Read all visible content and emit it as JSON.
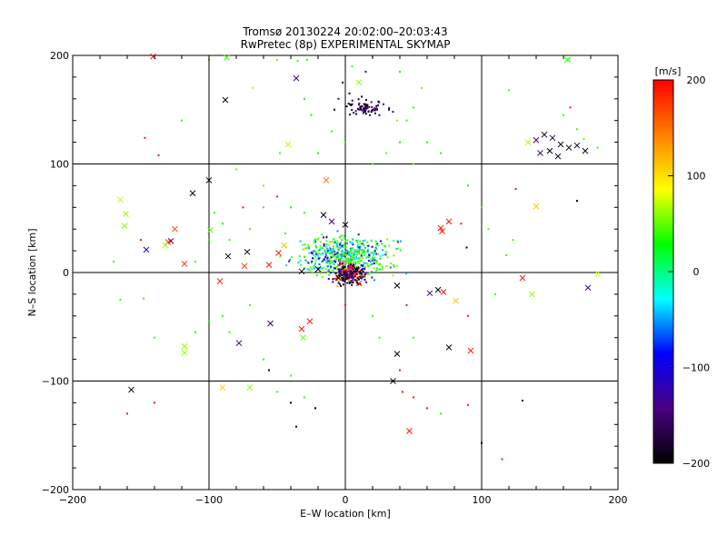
{
  "chart_data": {
    "type": "scatter",
    "title": "Tromsø 20130224 20:02:00–20:03:43",
    "subtitle": "RwPretec (8p) EXPERIMENTAL SKYMAP",
    "xlabel": "E–W location [km]",
    "ylabel": "N–S location [km]",
    "xlim": [
      -200,
      200
    ],
    "ylim": [
      -200,
      200
    ],
    "xticks": [
      -200,
      -100,
      0,
      100,
      200
    ],
    "yticks": [
      -200,
      -100,
      0,
      100,
      200
    ],
    "xtick_labels": [
      "−200",
      "−100",
      "0",
      "100",
      "200"
    ],
    "ytick_labels": [
      "−200",
      "−100",
      "0",
      "100",
      "200"
    ],
    "grid": true,
    "colorbar": {
      "label": "[m/s]",
      "range": [
        -200,
        200
      ],
      "ticks": [
        200,
        100,
        0,
        -100,
        -200
      ],
      "tick_labels": [
        "200",
        "100",
        "0",
        "−100",
        "−200"
      ],
      "colors": [
        "#000000",
        "#4b0082",
        "#0000ff",
        "#00ffff",
        "#00ff00",
        "#ffff00",
        "#ff8000",
        "#ff0000"
      ]
    },
    "series": [
      {
        "marker": "x",
        "points": [
          [
            -141,
            199,
            200
          ],
          [
            -87,
            198,
            40
          ],
          [
            163,
            196,
            30
          ],
          [
            -88,
            159,
            -200
          ],
          [
            -36,
            179,
            -150
          ],
          [
            10,
            175,
            60
          ],
          [
            -42,
            118,
            70
          ],
          [
            -14,
            85,
            150
          ],
          [
            134,
            120,
            70
          ],
          [
            140,
            122,
            -160
          ],
          [
            146,
            127,
            -180
          ],
          [
            152,
            124,
            -170
          ],
          [
            158,
            118,
            -190
          ],
          [
            164,
            115,
            -200
          ],
          [
            170,
            117,
            -180
          ],
          [
            176,
            112,
            -190
          ],
          [
            150,
            112,
            -200
          ],
          [
            143,
            110,
            -170
          ],
          [
            156,
            107,
            -180
          ],
          [
            -165,
            67,
            70
          ],
          [
            -161,
            54,
            60
          ],
          [
            -162,
            43,
            60
          ],
          [
            -112,
            73,
            -200
          ],
          [
            -100,
            85,
            -200
          ],
          [
            -125,
            40,
            170
          ],
          [
            -128,
            29,
            -150
          ],
          [
            -130,
            28,
            180
          ],
          [
            -132,
            25,
            65
          ],
          [
            -146,
            21,
            -120
          ],
          [
            -118,
            8,
            180
          ],
          [
            -99,
            39,
            50
          ],
          [
            -86,
            15,
            -200
          ],
          [
            -72,
            19,
            -200
          ],
          [
            -74,
            6,
            180
          ],
          [
            -56,
            7,
            190
          ],
          [
            -49,
            18,
            190
          ],
          [
            -45,
            25,
            110
          ],
          [
            -32,
            1,
            -200
          ],
          [
            -20,
            3,
            -200
          ],
          [
            -16,
            53,
            -200
          ],
          [
            -10,
            47,
            -150
          ],
          [
            0,
            44,
            -200
          ],
          [
            70,
            41,
            190
          ],
          [
            76,
            47,
            190
          ],
          [
            71,
            38,
            190
          ],
          [
            140,
            61,
            110
          ],
          [
            -92,
            -8,
            190
          ],
          [
            -32,
            -52,
            190
          ],
          [
            -26,
            -45,
            190
          ],
          [
            -31,
            -60,
            50
          ],
          [
            -55,
            -47,
            -150
          ],
          [
            -78,
            -65,
            -150
          ],
          [
            -118,
            -68,
            60
          ],
          [
            -118,
            -74,
            60
          ],
          [
            -90,
            -106,
            110
          ],
          [
            -70,
            -106,
            60
          ],
          [
            -157,
            -108,
            -200
          ],
          [
            38,
            -75,
            -200
          ],
          [
            76,
            -69,
            -200
          ],
          [
            92,
            -72,
            190
          ],
          [
            38,
            -12,
            -200
          ],
          [
            68,
            -16,
            -200
          ],
          [
            72,
            -18,
            190
          ],
          [
            81,
            -26,
            110
          ],
          [
            62,
            -19,
            -150
          ],
          [
            130,
            -5,
            190
          ],
          [
            137,
            -20,
            60
          ],
          [
            178,
            -14,
            -150
          ],
          [
            185,
            -1,
            70
          ],
          [
            35,
            -100,
            -200
          ],
          [
            47,
            -146,
            190
          ],
          [
            -3,
            8,
            190
          ],
          [
            4,
            6,
            190
          ],
          [
            8,
            3,
            -200
          ],
          [
            -5,
            -5,
            -200
          ],
          [
            10,
            -10,
            190
          ],
          [
            2,
            -2,
            -150
          ]
        ]
      },
      {
        "marker": "dot",
        "points": [
          [
            -147,
            124,
            190
          ],
          [
            -137,
            108,
            190
          ],
          [
            -100,
            196,
            50
          ],
          [
            -50,
            196,
            50
          ],
          [
            -35,
            195,
            40
          ],
          [
            -28,
            196,
            40
          ],
          [
            -68,
            170,
            70
          ],
          [
            -30,
            160,
            30
          ],
          [
            -25,
            145,
            30
          ],
          [
            -10,
            130,
            40
          ],
          [
            0,
            120,
            30
          ],
          [
            -20,
            110,
            30
          ],
          [
            -48,
            110,
            40
          ],
          [
            -80,
            95,
            50
          ],
          [
            -60,
            60,
            40
          ],
          [
            -90,
            45,
            30
          ],
          [
            -96,
            55,
            40
          ],
          [
            -40,
            60,
            30
          ],
          [
            -30,
            55,
            40
          ],
          [
            -44,
            36,
            40
          ],
          [
            -110,
            10,
            40
          ],
          [
            -100,
            30,
            30
          ],
          [
            -85,
            30,
            40
          ],
          [
            -70,
            40,
            40
          ],
          [
            -75,
            60,
            190
          ],
          [
            -50,
            70,
            190
          ],
          [
            -60,
            80,
            50
          ],
          [
            20,
            100,
            40
          ],
          [
            30,
            110,
            50
          ],
          [
            40,
            120,
            30
          ],
          [
            50,
            100,
            50
          ],
          [
            60,
            120,
            30
          ],
          [
            70,
            110,
            40
          ],
          [
            90,
            80,
            30
          ],
          [
            100,
            60,
            40
          ],
          [
            105,
            40,
            50
          ],
          [
            85,
            45,
            190
          ],
          [
            89,
            23,
            -200
          ],
          [
            20,
            199,
            40
          ],
          [
            40,
            185,
            30
          ],
          [
            56,
            170,
            50
          ],
          [
            5,
            190,
            40
          ],
          [
            15,
            185,
            -150
          ],
          [
            -2,
            175,
            -200
          ],
          [
            -5,
            160,
            -160
          ],
          [
            5,
            155,
            -170
          ],
          [
            10,
            150,
            -150
          ],
          [
            15,
            155,
            -180
          ],
          [
            20,
            150,
            -160
          ],
          [
            25,
            145,
            -170
          ],
          [
            28,
            155,
            -150
          ],
          [
            32,
            150,
            -180
          ],
          [
            35,
            148,
            -160
          ],
          [
            3,
            165,
            -200
          ],
          [
            12,
            162,
            -170
          ],
          [
            -8,
            150,
            -200
          ],
          [
            8,
            146,
            -180
          ],
          [
            18,
            145,
            -160
          ],
          [
            38,
            140,
            60
          ],
          [
            45,
            140,
            40
          ],
          [
            50,
            152,
            40
          ],
          [
            160,
            145,
            40
          ],
          [
            165,
            152,
            190
          ],
          [
            170,
            132,
            40
          ],
          [
            175,
            123,
            50
          ],
          [
            185,
            115,
            40
          ],
          [
            170,
            66,
            -200
          ],
          [
            120,
            168,
            40
          ],
          [
            -120,
            140,
            40
          ],
          [
            -150,
            30,
            190
          ],
          [
            -170,
            10,
            40
          ],
          [
            -165,
            -25,
            40
          ],
          [
            -148,
            -24,
            40
          ],
          [
            -140,
            -60,
            40
          ],
          [
            -110,
            -55,
            40
          ],
          [
            -100,
            -45,
            30
          ],
          [
            -90,
            -40,
            40
          ],
          [
            -85,
            -55,
            40
          ],
          [
            -70,
            -30,
            40
          ],
          [
            -60,
            -80,
            40
          ],
          [
            -56,
            -90,
            -200
          ],
          [
            -40,
            -95,
            40
          ],
          [
            -50,
            -110,
            40
          ],
          [
            -30,
            -115,
            40
          ],
          [
            -22,
            -125,
            -200
          ],
          [
            -40,
            -120,
            -200
          ],
          [
            -36,
            -142,
            -200
          ],
          [
            -160,
            -130,
            190
          ],
          [
            -140,
            -120,
            190
          ],
          [
            0,
            -30,
            190
          ],
          [
            20,
            -40,
            40
          ],
          [
            25,
            -60,
            40
          ],
          [
            40,
            -90,
            190
          ],
          [
            42,
            -110,
            190
          ],
          [
            50,
            -115,
            190
          ],
          [
            60,
            -125,
            190
          ],
          [
            70,
            -130,
            40
          ],
          [
            90,
            -122,
            190
          ],
          [
            100,
            -157,
            -200
          ],
          [
            115,
            -172,
            190
          ],
          [
            130,
            -118,
            -200
          ],
          [
            90,
            -40,
            190
          ],
          [
            45,
            -30,
            190
          ],
          [
            50,
            -60,
            40
          ],
          [
            110,
            -20,
            40
          ],
          [
            118,
            16,
            40
          ],
          [
            123,
            30,
            40
          ],
          [
            125,
            77,
            190
          ]
        ]
      }
    ],
    "dense_cluster": {
      "center": [
        0,
        15
      ],
      "spread": [
        30,
        16
      ],
      "count": 520,
      "velocity_range": [
        -100,
        70
      ]
    },
    "core_cluster": {
      "center": [
        3,
        -2
      ],
      "spread": [
        10,
        8
      ],
      "count": 240,
      "velocity_range": [
        -200,
        200
      ]
    },
    "north_cluster": {
      "center": [
        15,
        152
      ],
      "spread": [
        12,
        6
      ],
      "count": 60,
      "velocity_range": [
        -200,
        -140
      ]
    }
  }
}
